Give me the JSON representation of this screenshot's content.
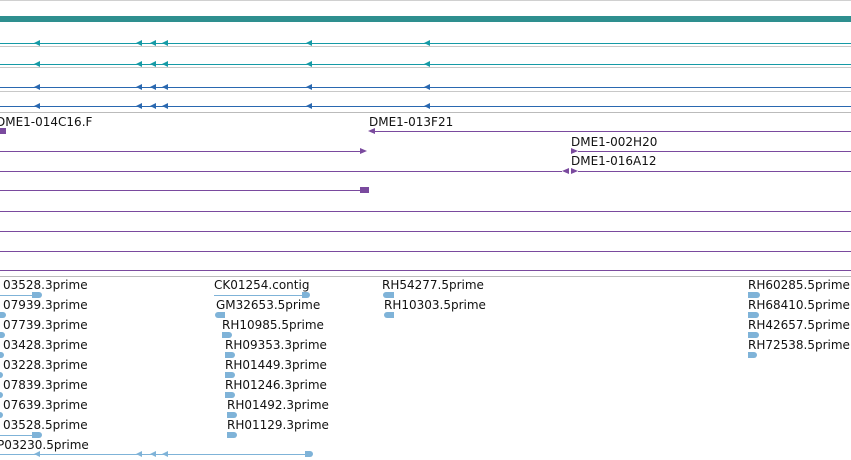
{
  "colors": {
    "top_band": "#2e8f8f",
    "teal_track": "#159aa6",
    "blue_track": "#2a68b0",
    "purple_track": "#7a4a9e",
    "est_feature": "#7fb3d8"
  },
  "clone_labels": {
    "c1": "DME1-014C16.F",
    "c2": "DME1-013F21",
    "c3": "DME1-002H20",
    "c4": "DME1-016A12"
  },
  "est_labels": {
    "col1": [
      "03528.3prime",
      "07939.3prime",
      "07739.3prime",
      "03428.3prime",
      "03228.3prime",
      "07839.3prime",
      "07639.3prime",
      "03528.5prime",
      "P03230.5prime"
    ],
    "col2": [
      "CK01254.contig",
      "GM32653.5prime",
      "RH10985.5prime",
      "RH09353.3prime",
      "RH01449.3prime",
      "RH01246.3prime",
      "RH01492.3prime",
      "RH01129.3prime"
    ],
    "col3": [
      "RH54277.5prime",
      "RH10303.5prime"
    ],
    "col4": [
      "RH60285.5prime",
      "RH68410.5prime",
      "RH42657.5prime",
      "RH72538.5prime"
    ]
  }
}
